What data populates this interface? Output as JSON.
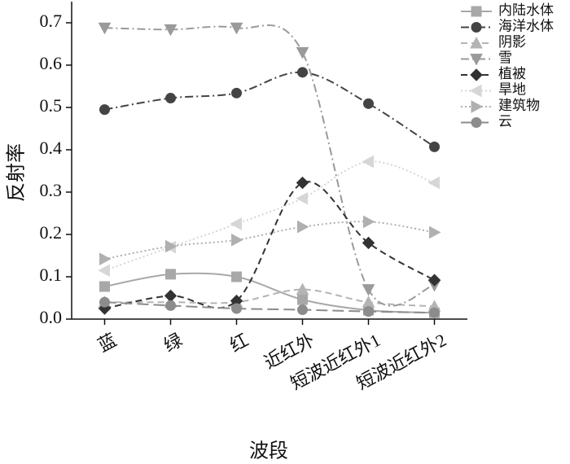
{
  "chart_data": {
    "type": "line",
    "x_label": "波段",
    "y_label": "反射率",
    "categories": [
      "蓝",
      "绿",
      "红",
      "近红外",
      "短波近红外1",
      "短波近红外2"
    ],
    "ylim": [
      0,
      0.75
    ],
    "yticks": [
      {
        "value": 0,
        "label": "0.0"
      },
      0.1,
      0.2,
      0.3,
      0.4,
      0.5,
      0.6,
      0.7
    ],
    "series": [
      {
        "name": "内陆水体",
        "color": "#a8a8a8",
        "marker": "square",
        "dash": "solid",
        "values": [
          0.077,
          0.106,
          0.1,
          0.046,
          0.021,
          0.015
        ]
      },
      {
        "name": "海洋水体",
        "color": "#444444",
        "marker": "circle",
        "dash": "dashdot",
        "values": [
          0.495,
          0.522,
          0.534,
          0.583,
          0.509,
          0.407
        ]
      },
      {
        "name": "阴影",
        "color": "#b4b4b4",
        "marker": "triangle-up",
        "dash": "dashed",
        "values": [
          0.04,
          0.04,
          0.04,
          0.07,
          0.04,
          0.03
        ]
      },
      {
        "name": "雪",
        "color": "#9a9a9a",
        "marker": "triangle-down",
        "dash": "dashdot",
        "values": [
          0.688,
          0.684,
          0.688,
          0.63,
          0.07,
          0.08
        ]
      },
      {
        "name": "植被",
        "color": "#333333",
        "marker": "diamond",
        "dash": "dashed",
        "values": [
          0.025,
          0.055,
          0.043,
          0.322,
          0.18,
          0.092
        ]
      },
      {
        "name": "旱地",
        "color": "#d6d6d6",
        "marker": "triangle-left",
        "dash": "dotted",
        "values": [
          0.115,
          0.17,
          0.225,
          0.285,
          0.372,
          0.322
        ]
      },
      {
        "name": "建筑物",
        "color": "#b0b0b0",
        "marker": "triangle-right",
        "dash": "dotted",
        "values": [
          0.142,
          0.172,
          0.187,
          0.218,
          0.23,
          0.205
        ]
      },
      {
        "name": "云",
        "color": "#8c8c8c",
        "marker": "circle",
        "dash": "longdash",
        "values": [
          0.04,
          0.032,
          0.025,
          0.022,
          0.018,
          0.015
        ]
      }
    ]
  }
}
